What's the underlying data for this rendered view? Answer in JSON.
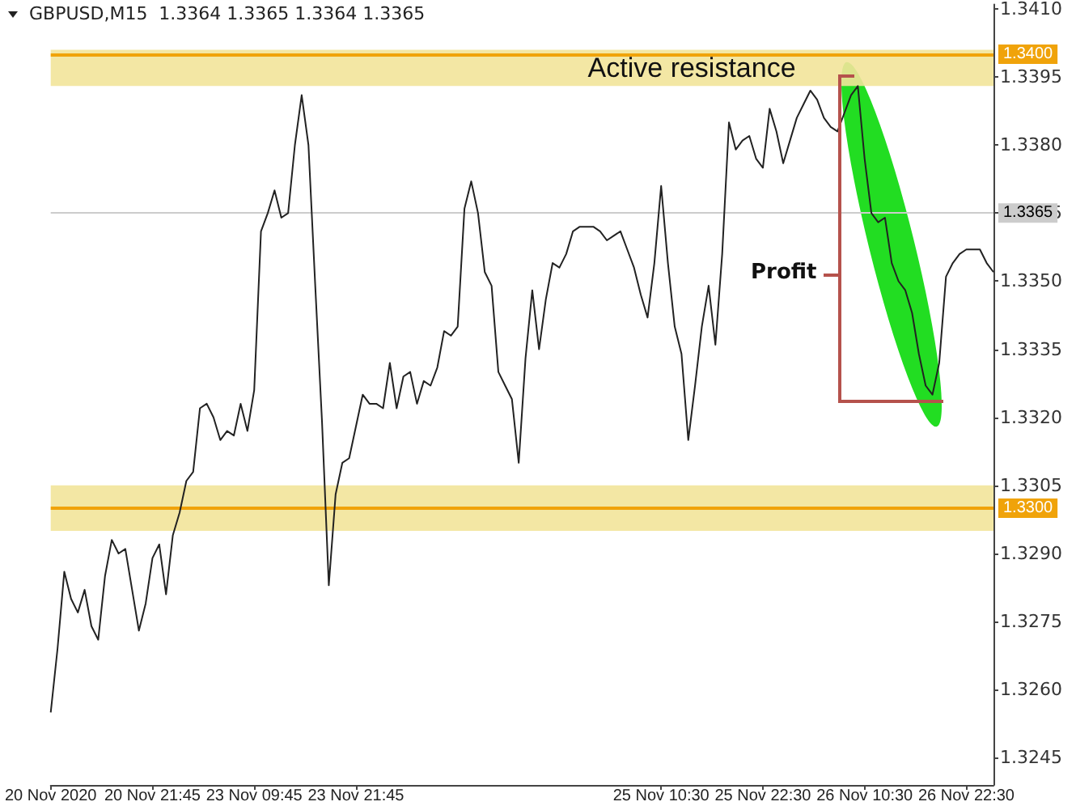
{
  "chart_data": {
    "type": "line",
    "title": "GBPUSD,M15  1.3364 1.3365 1.3364 1.3365",
    "categories": [
      "20 Nov 2020",
      null,
      null,
      null,
      null,
      null,
      null,
      null,
      null,
      null,
      null,
      null,
      null,
      null,
      null,
      "20 Nov 21:45",
      null,
      null,
      null,
      null,
      null,
      null,
      null,
      null,
      null,
      null,
      null,
      null,
      null,
      null,
      "23 Nov 09:45",
      null,
      null,
      null,
      null,
      null,
      null,
      null,
      null,
      null,
      null,
      null,
      null,
      null,
      null,
      "23 Nov 21:45",
      null,
      null,
      null,
      null,
      null,
      null,
      null,
      null,
      null,
      null,
      null,
      null,
      null,
      null,
      null,
      null,
      null,
      null,
      null,
      null,
      null,
      null,
      null,
      null,
      null,
      null,
      null,
      null,
      null,
      null,
      null,
      null,
      null,
      null,
      null,
      null,
      null,
      null,
      null,
      null,
      null,
      null,
      null,
      null,
      "25 Nov 10:30",
      null,
      null,
      null,
      null,
      null,
      null,
      null,
      null,
      null,
      null,
      null,
      null,
      null,
      null,
      "25 Nov 22:30",
      null,
      null,
      null,
      null,
      null,
      null,
      null,
      null,
      null,
      null,
      null,
      null,
      null,
      null,
      "26 Nov 10:30",
      null,
      null,
      null,
      null,
      null,
      null,
      null,
      null,
      null,
      null,
      null,
      null,
      null,
      null,
      "26 Nov 22:30",
      null,
      null,
      null,
      null
    ],
    "series": [
      {
        "color": "#222222",
        "values": [
          1.3255,
          1.3269,
          1.3286,
          1.328,
          1.3277,
          1.3282,
          1.3274,
          1.3271,
          1.3285,
          1.3293,
          1.329,
          1.3291,
          1.3282,
          1.3273,
          1.3279,
          1.3289,
          1.3292,
          1.3281,
          1.3294,
          1.3299,
          1.3306,
          1.3308,
          1.3322,
          1.3323,
          1.332,
          1.3315,
          1.3317,
          1.3316,
          1.3323,
          1.3317,
          1.3326,
          1.3361,
          1.3365,
          1.337,
          1.3364,
          1.3365,
          1.338,
          1.3391,
          1.338,
          1.3349,
          1.3319,
          1.3283,
          1.3303,
          1.331,
          1.3311,
          1.3318,
          1.3325,
          1.3323,
          1.3323,
          1.3322,
          1.3332,
          1.3322,
          1.3329,
          1.333,
          1.3323,
          1.3328,
          1.3327,
          1.3331,
          1.3339,
          1.3338,
          1.334,
          1.3366,
          1.3372,
          1.3365,
          1.3352,
          1.3349,
          1.333,
          1.3327,
          1.3324,
          1.331,
          1.3333,
          1.3348,
          1.3335,
          1.3346,
          1.3354,
          1.3353,
          1.3356,
          1.3361,
          1.3362,
          1.3362,
          1.3362,
          1.3361,
          1.3359,
          1.336,
          1.3361,
          1.3357,
          1.3353,
          1.3347,
          1.3342,
          1.3354,
          1.3371,
          1.3354,
          1.334,
          1.3334,
          1.3315,
          1.3327,
          1.334,
          1.3349,
          1.3336,
          1.3356,
          1.3385,
          1.3379,
          1.3381,
          1.3382,
          1.3377,
          1.3375,
          1.3388,
          1.3383,
          1.3376,
          1.3381,
          1.3386,
          1.3389,
          1.3392,
          1.339,
          1.3386,
          1.3384,
          1.3383,
          1.3387,
          1.3391,
          1.3393,
          1.3377,
          1.3365,
          1.3363,
          1.3364,
          1.3354,
          1.335,
          1.3348,
          1.3343,
          1.3334,
          1.3327,
          1.3325,
          1.3332,
          1.3351,
          1.3354,
          1.3356,
          1.3357,
          1.3357,
          1.3357,
          1.3354,
          1.3352
        ]
      }
    ],
    "ylim": [
      1.3239,
      1.3411
    ],
    "yticks": [
      1.3245,
      {
        "value": 1.326,
        "label": "1.3260"
      },
      1.3275,
      {
        "value": 1.329,
        "label": "1.3290"
      },
      1.3305,
      {
        "value": 1.332,
        "label": "1.3320"
      },
      1.3335,
      {
        "value": 1.335,
        "label": "1.3350"
      },
      1.3365,
      {
        "value": 1.338,
        "label": "1.3380"
      },
      1.3395,
      {
        "value": 1.341,
        "label": "1.3410"
      }
    ],
    "ref_lines": [
      {
        "axis": "y",
        "value": 1.34,
        "label": "1.3400",
        "color": "#f0a30a"
      },
      {
        "axis": "y",
        "value": 1.33,
        "label": "1.3300",
        "color": "#f0a30a"
      },
      {
        "axis": "y",
        "value": 1.3365,
        "label": "1.3365",
        "color": "#cccccc"
      }
    ],
    "bands": [
      {
        "axis": "y",
        "from": 1.3393,
        "to": 1.3401,
        "label": "Active resistance",
        "color": "#f2e49a"
      },
      {
        "axis": "y",
        "from": 1.3295,
        "to": 1.3305,
        "color": "#f2e49a"
      }
    ],
    "annotations": [
      "Profit"
    ],
    "marker": "none",
    "line_style": "solid",
    "grid": false
  }
}
